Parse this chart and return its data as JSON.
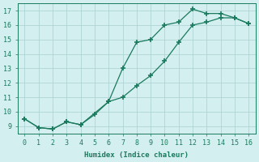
{
  "upper_x": [
    0,
    1,
    2,
    3,
    4,
    6,
    7,
    8,
    9,
    10,
    11,
    12,
    13,
    14,
    15,
    16
  ],
  "upper_y": [
    9.5,
    8.9,
    8.8,
    9.3,
    9.1,
    10.7,
    13.0,
    14.8,
    15.0,
    16.0,
    16.2,
    17.1,
    16.8,
    16.8,
    16.5,
    16.1
  ],
  "lower_x": [
    0,
    1,
    2,
    3,
    4,
    5,
    6,
    7,
    8,
    9,
    10,
    11,
    12,
    13,
    14,
    15,
    16
  ],
  "lower_y": [
    9.5,
    8.9,
    8.8,
    9.3,
    9.1,
    9.8,
    10.7,
    11.0,
    11.8,
    12.5,
    13.5,
    14.8,
    16.0,
    16.2,
    16.5,
    16.5,
    16.1
  ],
  "color": "#1a7a5e",
  "bg_color": "#d4efef",
  "grid_color": "#b0d4d4",
  "xlabel": "Humidex (Indice chaleur)",
  "xlim": [
    -0.5,
    16.5
  ],
  "ylim": [
    8.5,
    17.5
  ],
  "xticks": [
    0,
    1,
    2,
    3,
    4,
    5,
    6,
    7,
    8,
    9,
    10,
    11,
    12,
    13,
    14,
    15,
    16
  ],
  "yticks": [
    9,
    10,
    11,
    12,
    13,
    14,
    15,
    16,
    17
  ]
}
